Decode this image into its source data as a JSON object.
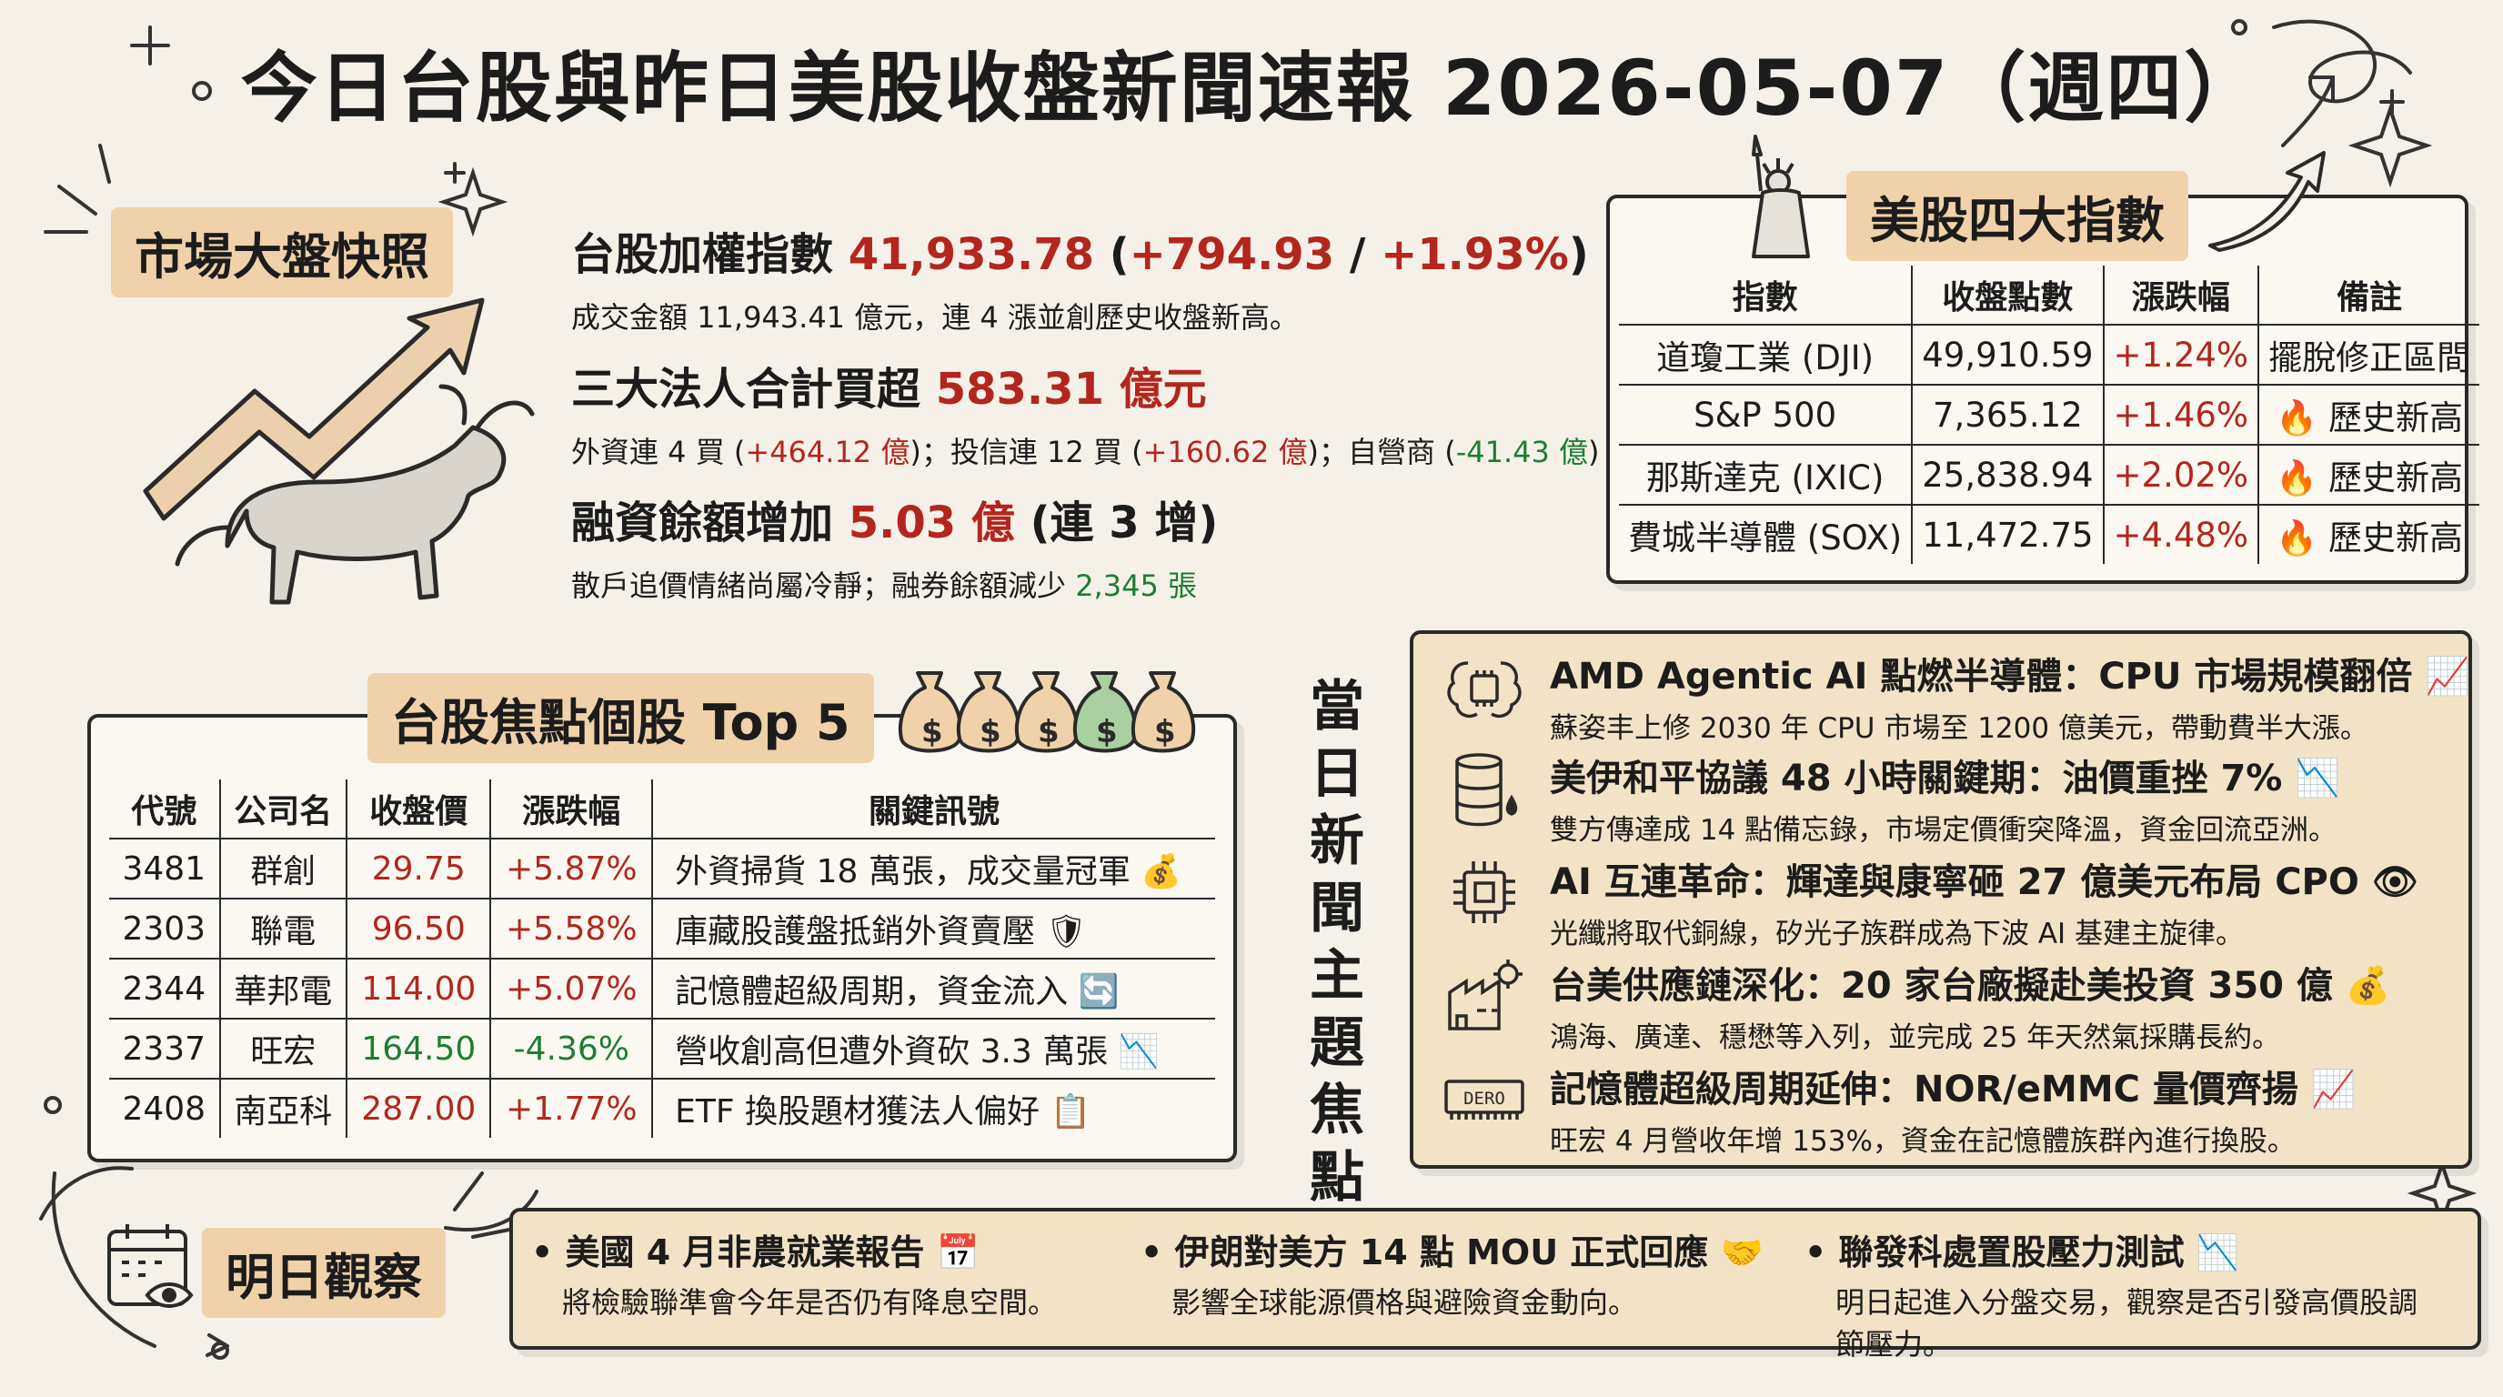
{
  "title": "今日台股與昨日美股收盤新聞速報 2026-05-07（週四）",
  "snapshot": {
    "tag": "市場大盤快照",
    "taiex": {
      "label": "台股加權指數",
      "value": "41,933.78",
      "paren_open": "(",
      "change": "+794.93",
      "sep": " / ",
      "pct": "+1.93%",
      "paren_close": ")",
      "sub": "成交金額 11,943.41 億元，連 4 漲並創歷史收盤新高。"
    },
    "institutional": {
      "label": "三大法人合計買超",
      "value": "583.31 億元",
      "sub_prefix": "外資連 4 買 (",
      "foreign": "+464.12 億",
      "sub_mid1": ")；投信連 12 買 (",
      "trust": "+160.62 億",
      "sub_mid2": ")；自營商 (",
      "dealer": "-41.43 億",
      "sub_suffix": ")"
    },
    "margin": {
      "label": "融資餘額增加",
      "value": "5.03 億",
      "suffix": "(連 3 增)",
      "sub_prefix": "散戶追價情緒尚屬冷靜；融券餘額減少",
      "short": "2,345 張"
    }
  },
  "us": {
    "tag": "美股四大指數",
    "headers": [
      "指數",
      "收盤點數",
      "漲跌幅",
      "備註"
    ],
    "rows": [
      {
        "name": "道瓊工業 (DJI)",
        "close": "49,910.59",
        "chg": "+1.24%",
        "note": "擺脫修正區間",
        "icon": ""
      },
      {
        "name": "S&P 500",
        "close": "7,365.12",
        "chg": "+1.46%",
        "note": "歷史新高",
        "icon": "🔥"
      },
      {
        "name": "那斯達克 (IXIC)",
        "close": "25,838.94",
        "chg": "+2.02%",
        "note": "歷史新高",
        "icon": "🔥"
      },
      {
        "name": "費城半導體 (SOX)",
        "close": "11,472.75",
        "chg": "+4.48%",
        "note": "歷史新高",
        "icon": "🔥"
      }
    ]
  },
  "top5": {
    "tag": "台股焦點個股 Top 5",
    "headers": [
      "代號",
      "公司名",
      "收盤價",
      "漲跌幅",
      "關鍵訊號"
    ],
    "rows": [
      {
        "code": "3481",
        "name": "群創",
        "price": "29.75",
        "chg": "+5.87%",
        "note": "外資掃貨 18 萬張，成交量冠軍",
        "icon": "💰",
        "dir": "up"
      },
      {
        "code": "2303",
        "name": "聯電",
        "price": "96.50",
        "chg": "+5.58%",
        "note": "庫藏股護盤抵銷外資賣壓",
        "icon": "🛡",
        "dir": "up"
      },
      {
        "code": "2344",
        "name": "華邦電",
        "price": "114.00",
        "chg": "+5.07%",
        "note": "記憶體超級周期，資金流入",
        "icon": "🔄",
        "dir": "up"
      },
      {
        "code": "2337",
        "name": "旺宏",
        "price": "164.50",
        "chg": "-4.36%",
        "note": "營收創高但遭外資砍 3.3 萬張",
        "icon": "📉",
        "dir": "down"
      },
      {
        "code": "2408",
        "name": "南亞科",
        "price": "287.00",
        "chg": "+1.77%",
        "note": "ETF 換股題材獲法人偏好",
        "icon": "📋",
        "dir": "up"
      }
    ]
  },
  "news": {
    "vertical_label": [
      "當",
      "日",
      "新",
      "聞",
      "主",
      "題",
      "焦",
      "點"
    ],
    "items": [
      {
        "title": "AMD Agentic AI 點燃半導體：CPU 市場規模翻倍",
        "icon": "📈",
        "desc": "蘇姿丰上修 2030 年 CPU 市場至 1200 億美元，帶動費半大漲。",
        "pic": "brain-chip-icon"
      },
      {
        "title": "美伊和平協議 48 小時關鍵期：油價重挫 7%",
        "icon": "📉",
        "desc": "雙方傳達成 14 點備忘錄，市場定價衝突降溫，資金回流亞洲。",
        "pic": "oil-barrel-icon"
      },
      {
        "title": "AI 互連革命：輝達與康寧砸 27 億美元布局 CPO",
        "icon": "👁",
        "desc": "光纖將取代銅線，矽光子族群成為下波 AI 基建主旋律。",
        "pic": "chip-icon"
      },
      {
        "title": "台美供應鏈深化：20 家台廠擬赴美投資 350 億",
        "icon": "💰",
        "desc": "鴻海、廣達、穩懋等入列，並完成 25 年天然氣採購長約。",
        "pic": "factory-icon"
      },
      {
        "title": "記憶體超級周期延伸：NOR/eMMC 量價齊揚",
        "icon": "📈",
        "desc": "旺宏 4 月營收年增 153%，資金在記憶體族群內進行換股。",
        "pic": "memory-icon",
        "pic_text": "DERO"
      }
    ]
  },
  "watch": {
    "tag": "明日觀察",
    "items": [
      {
        "title": "美國 4 月非農就業報告",
        "icon": "📅",
        "desc": "將檢驗聯準會今年是否仍有降息空間。"
      },
      {
        "title": "伊朗對美方 14 點 MOU 正式回應",
        "icon": "🤝",
        "desc": "影響全球能源價格與避險資金動向。"
      },
      {
        "title": "聯發科處置股壓力測試",
        "icon": "📉",
        "desc": "明日起進入分盤交易，觀察是否引發高價股調節壓力。"
      }
    ]
  },
  "colors": {
    "up": "#b3261e",
    "down": "#1e7d32",
    "tag_bg": "#efd2a9",
    "paper": "#f3e3c6"
  }
}
